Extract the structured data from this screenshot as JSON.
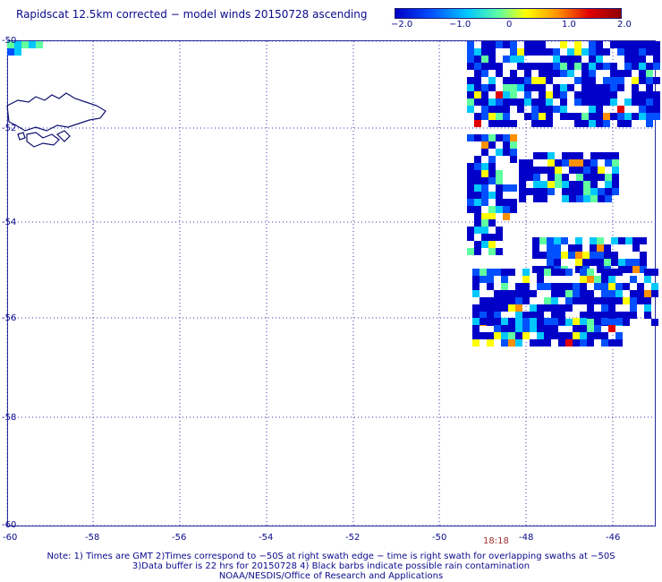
{
  "title": "Rapidscat 12.5km corrected − model winds 20150728 ascending",
  "colorbar": {
    "ticks": [
      "−2.0",
      "−1.0",
      "0",
      "1.0",
      "2.0"
    ],
    "colors": [
      "#0000c8",
      "#0050ff",
      "#00c8ff",
      "#60ffa0",
      "#ffff00",
      "#ff9000",
      "#e00000",
      "#900000"
    ]
  },
  "axes": {
    "lat_ticks": [
      "-50",
      "-52",
      "-54",
      "-56",
      "-58",
      "-60"
    ],
    "lon_ticks": [
      "-60",
      "-58",
      "-56",
      "-54",
      "-52",
      "-50",
      "-48",
      "-46"
    ],
    "lat_range": [
      -60,
      -50
    ],
    "lon_range": [
      -60,
      -45
    ],
    "grid": true
  },
  "pass_time": "18:18",
  "footer": {
    "line1": "Note: 1) Times are GMT 2)Times correspond to −50S at right swath edge − time is right swath for overlapping swaths at −50S",
    "line2": "3)Data buffer is 22 hrs for 20150728 4) Black barbs indicate possible rain contamination",
    "line3": "NOAA/NESDIS/Office of Research and Applications"
  },
  "colors": {
    "text": "#0a0a8c",
    "grid": "#3030b0",
    "land": "#101070",
    "time": "#a03030"
  }
}
